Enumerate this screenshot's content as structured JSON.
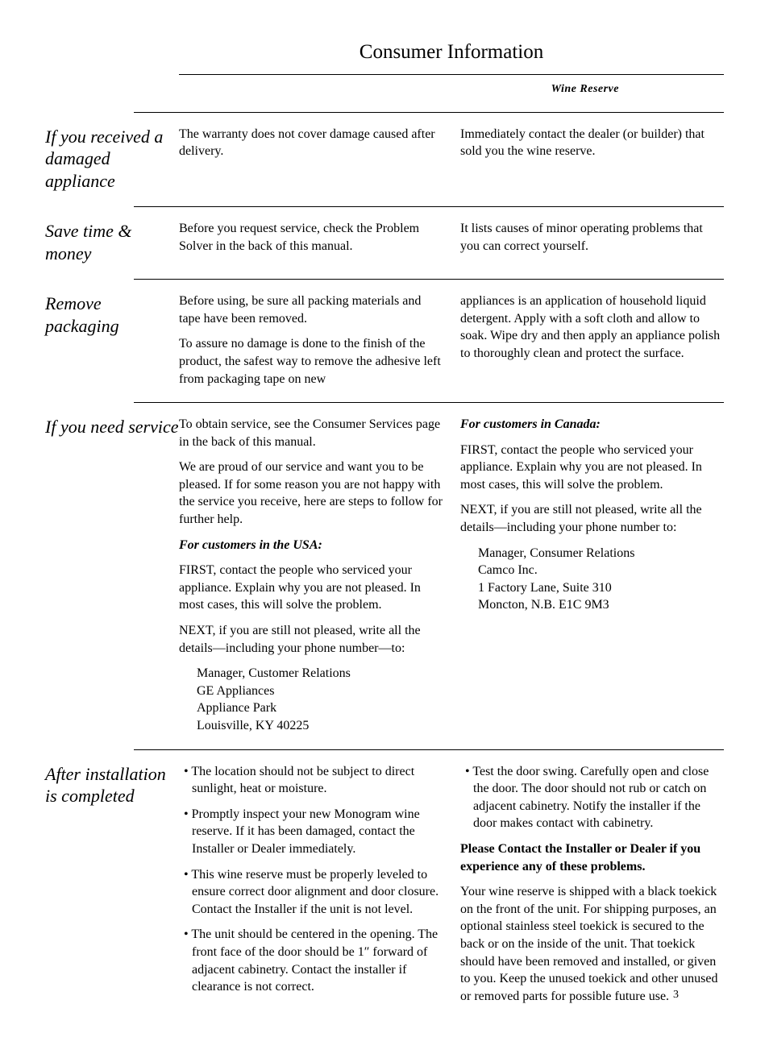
{
  "header": {
    "title": "Consumer Information",
    "subtitle": "Wine Reserve"
  },
  "sections": {
    "damaged": {
      "heading": "If you received a damaged appliance",
      "left_p1": "The warranty does not cover damage caused after delivery.",
      "right_p1": "Immediately contact the dealer (or builder) that sold you the wine reserve."
    },
    "save": {
      "heading": "Save time & money",
      "left_p1": "Before you request service, check the Problem Solver in the back of this manual.",
      "right_p1": "It lists causes of minor operating problems that you can correct yourself."
    },
    "packaging": {
      "heading": "Remove packaging",
      "left_p1": "Before using, be sure all packing materials and tape have been removed.",
      "left_p2": "To assure no damage is done to the finish of the product, the safest way to remove the adhesive left from packaging tape on new",
      "right_p1": "appliances is an application of household liquid detergent. Apply with a soft cloth and allow to soak. Wipe dry and then apply an appliance polish to thoroughly clean and protect the surface."
    },
    "service": {
      "heading": "If you need service",
      "left_p1": "To obtain service, see the Consumer Services page in the back of this manual.",
      "left_p2": "We are proud of our service and want you to be pleased. If for some reason you are not happy with the service you receive, here are steps to follow for further help.",
      "left_usa_title": "For customers in the USA:",
      "left_p3": "FIRST, contact the people who serviced your appliance. Explain why you are not pleased. In most cases, this will solve the problem.",
      "left_p4": "NEXT, if you are still not pleased, write all the details—including your phone number—to:",
      "left_addr1": "Manager, Customer Relations",
      "left_addr2": "GE Appliances",
      "left_addr3": "Appliance Park",
      "left_addr4": "Louisville, KY 40225",
      "right_can_title": "For customers in Canada:",
      "right_p1": "FIRST, contact the people who serviced your appliance. Explain why you are not pleased. In most cases, this will solve the problem.",
      "right_p2": "NEXT, if you are still not pleased, write all the details—including your phone number to:",
      "right_addr1": "Manager, Consumer Relations",
      "right_addr2": "Camco Inc.",
      "right_addr3": "1 Factory Lane, Suite 310",
      "right_addr4": "Moncton, N.B. E1C 9M3"
    },
    "after": {
      "heading": "After installation is completed",
      "left_b1": "The location should not be subject to direct sunlight, heat or moisture.",
      "left_b2": "Promptly inspect your new Monogram wine reserve. If it has been damaged, contact the Installer or Dealer immediately.",
      "left_b3": "This wine reserve must be properly leveled to ensure correct door alignment and door closure. Contact the Installer if the unit is not level.",
      "left_b4": "The unit should be centered in the opening. The front face of the door should be 1″ forward of adjacent cabinetry. Contact the installer if clearance is not correct.",
      "right_b1": "Test the door swing. Carefully open and close the door. The door should not rub or catch on adjacent cabinetry. Notify the installer if the door makes contact with cabinetry.",
      "right_bold": "Please Contact the Installer or Dealer if you experience any of these problems.",
      "right_p1": "Your wine reserve is shipped with a black toekick on the front of the unit. For shipping purposes, an optional stainless steel toekick is secured to the back or on the inside of the unit. That toekick should have been removed and installed, or given to you. Keep the unused toekick and other unused or removed parts for possible future use."
    }
  },
  "page_number": "3"
}
